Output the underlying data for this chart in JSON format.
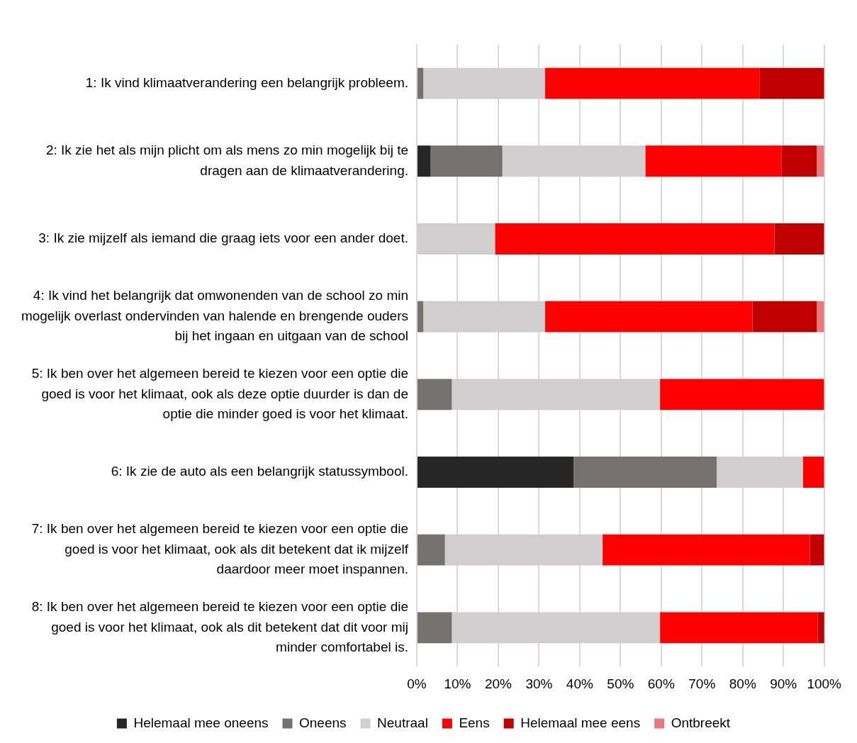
{
  "chart_data": {
    "type": "bar",
    "orientation": "horizontal",
    "stacked": true,
    "categories": [
      "1: Ik vind klimaatverandering een belangrijk probleem.",
      "2: Ik zie het als mijn plicht om als mens zo min mogelijk bij te dragen aan de klimaatverandering.",
      "3: Ik zie mijzelf als iemand die graag iets voor een ander doet.",
      "4: Ik vind het belangrijk dat omwonenden van de school zo min mogelijk overlast ondervinden van halende en brengende ouders bij het ingaan en uitgaan van de school",
      "5: Ik ben over het algemeen bereid te kiezen voor een optie die goed is voor het klimaat, ook als deze optie duurder is dan de optie die minder goed is voor het klimaat.",
      "6: Ik zie de auto als een belangrijk statussymbool.",
      "7: Ik ben over het algemeen bereid te kiezen voor een optie die goed is voor het klimaat, ook als dit betekent dat ik mijzelf daardoor meer moet inspannen.",
      "8: Ik ben over het algemeen bereid te kiezen voor een optie die goed is voor het klimaat, ook als dit betekent dat dit voor mij minder comfortabel is."
    ],
    "series": [
      {
        "name": "Helemaal mee oneens",
        "color": "#262626",
        "values": [
          0,
          3.4,
          0,
          0,
          0,
          38.5,
          0,
          0
        ]
      },
      {
        "name": "Oneens",
        "color": "#767171",
        "values": [
          1.6,
          17.6,
          0,
          1.6,
          8.6,
          35.1,
          6.9,
          8.6
        ]
      },
      {
        "name": "Neutraal",
        "color": "#d0cece",
        "values": [
          29.9,
          35.1,
          19.2,
          29.9,
          51.1,
          21.2,
          38.7,
          51.1
        ]
      },
      {
        "name": "Eens",
        "color": "#ff0000",
        "values": [
          52.7,
          33.4,
          68.6,
          50.9,
          40.3,
          5.2,
          50.9,
          38.7
        ]
      },
      {
        "name": "Helemaal mee eens",
        "color": "#c00000",
        "values": [
          15.8,
          8.7,
          12.2,
          15.8,
          0,
          0,
          3.5,
          1.7
        ]
      },
      {
        "name": "Ontbreekt",
        "color": "#e87a7a",
        "values": [
          0,
          1.8,
          0,
          1.8,
          0,
          0,
          0,
          0
        ]
      }
    ],
    "xlim": [
      0,
      100
    ],
    "xticks": [
      {
        "value": 0,
        "label": "0%"
      },
      {
        "value": 10,
        "label": "10%"
      },
      {
        "value": 20,
        "label": "20%"
      },
      {
        "value": 30,
        "label": "30%"
      },
      {
        "value": 40,
        "label": "40%"
      },
      {
        "value": 50,
        "label": "50%"
      },
      {
        "value": 60,
        "label": "60%"
      },
      {
        "value": 70,
        "label": "70%"
      },
      {
        "value": 80,
        "label": "80%"
      },
      {
        "value": 90,
        "label": "90%"
      },
      {
        "value": 100,
        "label": "100%"
      }
    ],
    "grid": "x",
    "legend": "bottom"
  }
}
